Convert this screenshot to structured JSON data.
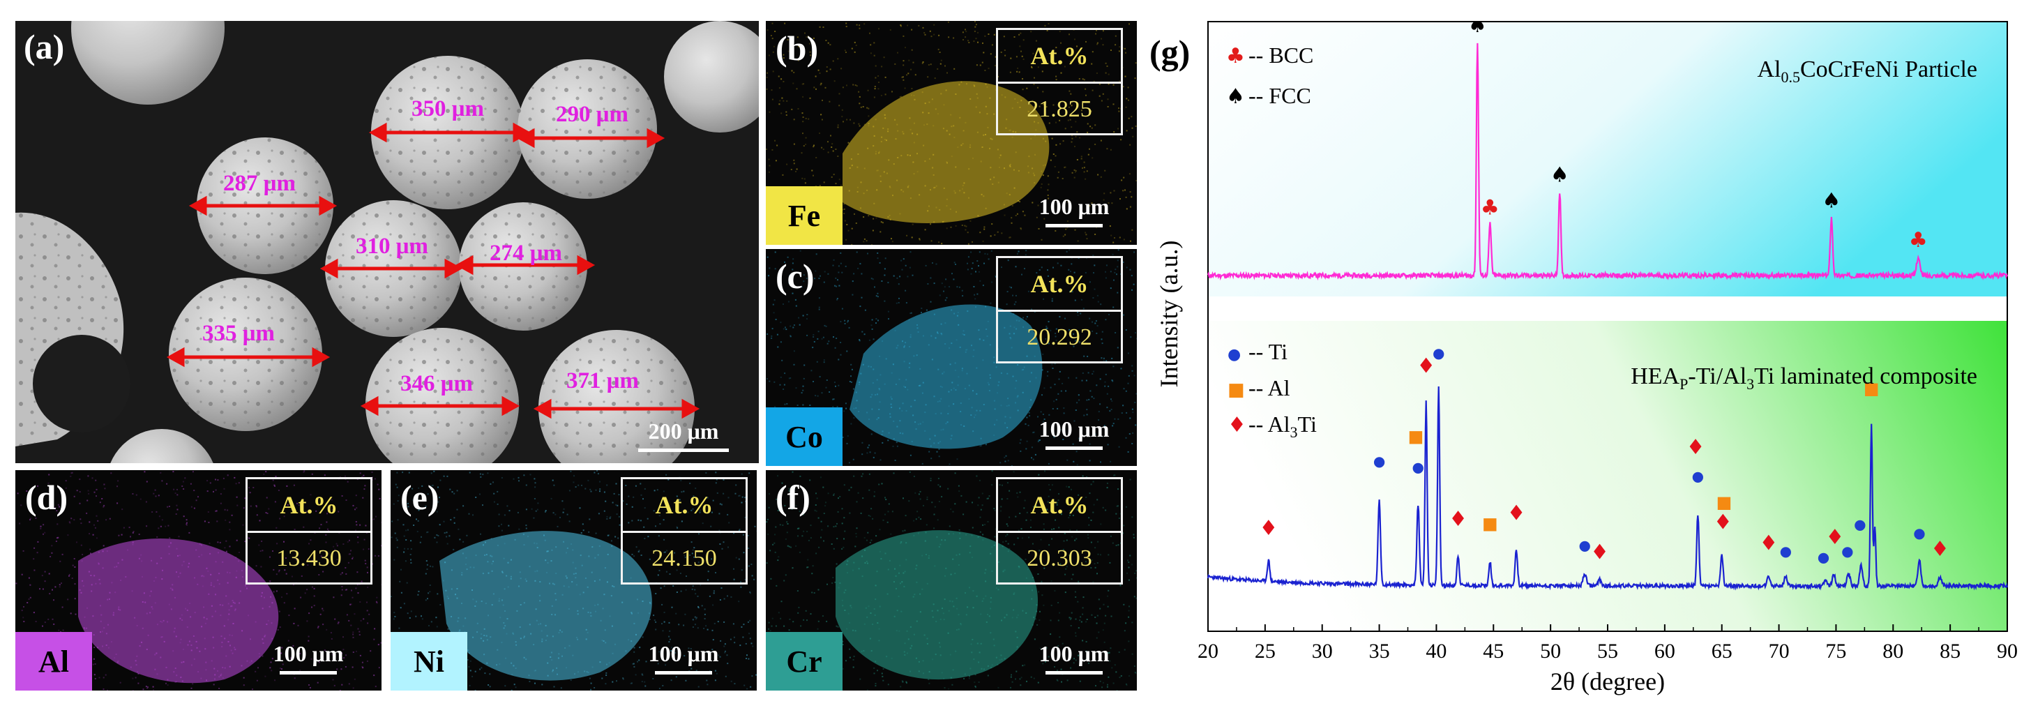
{
  "panel_a": {
    "label": "(a)",
    "scale_bar": "200 μm",
    "measurements": [
      "350 μm",
      "290 μm",
      "287 μm",
      "310 μm",
      "274 μm",
      "335 μm",
      "346 μm",
      "371 μm"
    ]
  },
  "panels_eds": [
    {
      "label": "(b)",
      "element": "Fe",
      "at_header": "At.%",
      "at_value": "21.825",
      "scale_bar": "100 μm",
      "color": "#e2c224",
      "box_color": "#f1e545"
    },
    {
      "label": "(c)",
      "element": "Co",
      "at_header": "At.%",
      "at_value": "20.292",
      "scale_bar": "100 μm",
      "color": "#2fb2de",
      "box_color": "#13a6e6"
    },
    {
      "label": "(d)",
      "element": "Al",
      "at_header": "At.%",
      "at_value": "13.430",
      "scale_bar": "100 μm",
      "color": "#c04ae0",
      "box_color": "#c650e6"
    },
    {
      "label": "(e)",
      "element": "Ni",
      "at_header": "At.%",
      "at_value": "24.150",
      "scale_bar": "100 μm",
      "color": "#4cc3e8",
      "box_color": "#b2f3ff"
    },
    {
      "label": "(f)",
      "element": "Cr",
      "at_header": "At.%",
      "at_value": "20.303",
      "scale_bar": "100 μm",
      "color": "#2aa793",
      "box_color": "#2e9e94"
    }
  ],
  "chart_data": {
    "type": "line",
    "panel_label": "(g)",
    "xlabel": "2θ (degree)",
    "ylabel": "Intensity (a.u.)",
    "xlim": [
      20,
      90
    ],
    "x_ticks": [
      "20",
      "25",
      "30",
      "35",
      "40",
      "45",
      "50",
      "55",
      "60",
      "65",
      "70",
      "75",
      "80",
      "85",
      "90"
    ],
    "colors": {
      "top": "#ff2ad4",
      "bottom": "#1a22d0",
      "bcc": "#e21b1b",
      "fcc": "#000000",
      "ti": "#1f3fd0",
      "al": "#f58a12",
      "al3ti": "#e3111b"
    },
    "top_series": {
      "name_parts": {
        "pre": "Al",
        "sub": "0.5",
        "post": "CoCrFeNi Particle"
      },
      "legend": [
        {
          "symbol": "♣",
          "text": "-- BCC"
        },
        {
          "symbol": "♠",
          "text": "-- FCC"
        }
      ],
      "baseline": 0.06,
      "peaks": [
        {
          "x": 43.6,
          "h": 1.0,
          "w": 0.13
        },
        {
          "x": 44.7,
          "h": 0.22,
          "w": 0.15
        },
        {
          "x": 50.8,
          "h": 0.36,
          "w": 0.14
        },
        {
          "x": 74.6,
          "h": 0.25,
          "w": 0.15
        },
        {
          "x": 82.2,
          "h": 0.08,
          "w": 0.2
        }
      ],
      "markers": [
        {
          "x": 43.6,
          "type": "fcc"
        },
        {
          "x": 44.7,
          "type": "bcc"
        },
        {
          "x": 50.8,
          "type": "fcc"
        },
        {
          "x": 74.6,
          "type": "fcc"
        },
        {
          "x": 82.2,
          "type": "bcc"
        }
      ]
    },
    "bottom_series": {
      "name_parts": {
        "pre": "HEA",
        "sub": "P",
        "post": "-Ti/Al",
        "sub2": "3",
        "post2": "Ti laminated composite"
      },
      "legend": [
        {
          "symbol": "●",
          "sym": "ti",
          "text": "-- Ti"
        },
        {
          "symbol": "■",
          "sym": "al",
          "text": "-- Al"
        },
        {
          "symbol": "♦",
          "sym": "al3ti",
          "text_pre": "-- Al",
          "text_sub": "3",
          "text_post": "Ti"
        }
      ],
      "peaks": [
        {
          "x": 25.3,
          "h": 0.07,
          "w": 0.15
        },
        {
          "x": 35.0,
          "h": 0.28,
          "w": 0.15
        },
        {
          "x": 38.4,
          "h": 0.27,
          "w": 0.15
        },
        {
          "x": 39.1,
          "h": 0.61,
          "w": 0.13
        },
        {
          "x": 40.2,
          "h": 0.66,
          "w": 0.13
        },
        {
          "x": 41.9,
          "h": 0.1,
          "w": 0.14
        },
        {
          "x": 44.7,
          "h": 0.08,
          "w": 0.14
        },
        {
          "x": 47.0,
          "h": 0.12,
          "w": 0.15
        },
        {
          "x": 53.0,
          "h": 0.04,
          "w": 0.2
        },
        {
          "x": 54.3,
          "h": 0.02,
          "w": 0.2
        },
        {
          "x": 62.9,
          "h": 0.24,
          "w": 0.14
        },
        {
          "x": 65.0,
          "h": 0.1,
          "w": 0.15
        },
        {
          "x": 69.1,
          "h": 0.03,
          "w": 0.18
        },
        {
          "x": 70.6,
          "h": 0.03,
          "w": 0.2
        },
        {
          "x": 74.1,
          "h": 0.02,
          "w": 0.2
        },
        {
          "x": 74.8,
          "h": 0.04,
          "w": 0.18
        },
        {
          "x": 76.1,
          "h": 0.04,
          "w": 0.2
        },
        {
          "x": 77.2,
          "h": 0.07,
          "w": 0.18
        },
        {
          "x": 78.1,
          "h": 0.54,
          "w": 0.12
        },
        {
          "x": 78.4,
          "h": 0.2,
          "w": 0.12
        },
        {
          "x": 82.3,
          "h": 0.09,
          "w": 0.18
        },
        {
          "x": 84.1,
          "h": 0.03,
          "w": 0.2
        }
      ],
      "markers": [
        {
          "x": 25.3,
          "type": "al3ti",
          "lvl": 0.17
        },
        {
          "x": 35.0,
          "type": "ti",
          "lvl": 0.4
        },
        {
          "x": 38.4,
          "type": "ti",
          "lvl": 0.38
        },
        {
          "x": 38.2,
          "type": "al",
          "lvl": 0.48
        },
        {
          "x": 39.1,
          "type": "al3ti",
          "lvl": 0.71
        },
        {
          "x": 40.2,
          "type": "ti",
          "lvl": 0.76
        },
        {
          "x": 41.9,
          "type": "al3ti",
          "lvl": 0.2
        },
        {
          "x": 44.7,
          "type": "al",
          "lvl": 0.19
        },
        {
          "x": 47.0,
          "type": "al3ti",
          "lvl": 0.22
        },
        {
          "x": 53.0,
          "type": "ti",
          "lvl": 0.12
        },
        {
          "x": 54.3,
          "type": "al3ti",
          "lvl": 0.09
        },
        {
          "x": 62.9,
          "type": "ti",
          "lvl": 0.35
        },
        {
          "x": 62.7,
          "type": "al3ti",
          "lvl": 0.44
        },
        {
          "x": 65.2,
          "type": "al",
          "lvl": 0.26
        },
        {
          "x": 65.1,
          "type": "al3ti",
          "lvl": 0.19
        },
        {
          "x": 69.1,
          "type": "al3ti",
          "lvl": 0.12
        },
        {
          "x": 70.6,
          "type": "ti",
          "lvl": 0.1
        },
        {
          "x": 73.9,
          "type": "ti",
          "lvl": 0.08
        },
        {
          "x": 74.9,
          "type": "al3ti",
          "lvl": 0.14
        },
        {
          "x": 76.0,
          "type": "ti",
          "lvl": 0.1
        },
        {
          "x": 77.1,
          "type": "ti",
          "lvl": 0.19
        },
        {
          "x": 78.1,
          "type": "al",
          "lvl": 0.64
        },
        {
          "x": 82.3,
          "type": "ti",
          "lvl": 0.16
        },
        {
          "x": 84.1,
          "type": "al3ti",
          "lvl": 0.1
        }
      ]
    }
  }
}
